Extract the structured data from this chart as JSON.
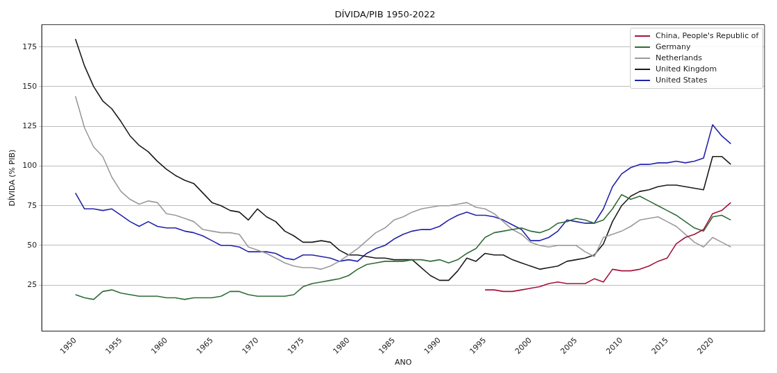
{
  "chart_data": {
    "type": "line",
    "title": "DÍVIDA/PIB 1950-2022",
    "xlabel": "ANO",
    "ylabel": "DÍVIDA (% PIB)",
    "x": [
      1950,
      1951,
      1952,
      1953,
      1954,
      1955,
      1956,
      1957,
      1958,
      1959,
      1960,
      1961,
      1962,
      1963,
      1964,
      1965,
      1966,
      1967,
      1968,
      1969,
      1970,
      1971,
      1972,
      1973,
      1974,
      1975,
      1976,
      1977,
      1978,
      1979,
      1980,
      1981,
      1982,
      1983,
      1984,
      1985,
      1986,
      1987,
      1988,
      1989,
      1990,
      1991,
      1992,
      1993,
      1994,
      1995,
      1996,
      1997,
      1998,
      1999,
      2000,
      2001,
      2002,
      2003,
      2004,
      2005,
      2006,
      2007,
      2008,
      2009,
      2010,
      2011,
      2012,
      2013,
      2014,
      2015,
      2016,
      2017,
      2018,
      2019,
      2020,
      2021,
      2022
    ],
    "series": [
      {
        "name": "China, People's Republic of",
        "color": "#a3123a",
        "x": [
          1995,
          1996,
          1997,
          1998,
          1999,
          2000,
          2001,
          2002,
          2003,
          2004,
          2005,
          2006,
          2007,
          2008,
          2009,
          2010,
          2011,
          2012,
          2013,
          2014,
          2015,
          2016,
          2017,
          2018,
          2019,
          2020,
          2021,
          2022
        ],
        "values": [
          22,
          22,
          21,
          21,
          22,
          23,
          24,
          26,
          27,
          26,
          26,
          26,
          29,
          27,
          35,
          34,
          34,
          35,
          37,
          40,
          42,
          51,
          55,
          57,
          60,
          70,
          72,
          77
        ]
      },
      {
        "name": "Germany",
        "color": "#2f6b35",
        "values": [
          19,
          17,
          16,
          21,
          22,
          20,
          19,
          18,
          18,
          18,
          17,
          17,
          16,
          17,
          17,
          17,
          18,
          21,
          21,
          19,
          18,
          18,
          18,
          18,
          19,
          24,
          26,
          27,
          28,
          29,
          31,
          35,
          38,
          39,
          40,
          40,
          40,
          41,
          41,
          40,
          41,
          39,
          41,
          45,
          48,
          55,
          58,
          59,
          60,
          61,
          59,
          58,
          60,
          64,
          65,
          67,
          66,
          64,
          66,
          73,
          82,
          79,
          81,
          78,
          75,
          72,
          69,
          65,
          61,
          59,
          68,
          69,
          66
        ]
      },
      {
        "name": "Netherlands",
        "color": "#9a9a9a",
        "values": [
          144,
          124,
          112,
          106,
          93,
          84,
          79,
          76,
          78,
          77,
          70,
          69,
          67,
          65,
          60,
          59,
          58,
          58,
          57,
          49,
          47,
          45,
          42,
          39,
          37,
          36,
          36,
          35,
          37,
          40,
          44,
          48,
          53,
          58,
          61,
          66,
          68,
          71,
          73,
          74,
          75,
          75,
          76,
          77,
          74,
          73,
          70,
          65,
          60,
          57,
          52,
          50,
          49,
          50,
          50,
          50,
          46,
          43,
          55,
          57,
          59,
          62,
          66,
          67,
          68,
          65,
          62,
          57,
          52,
          49,
          55,
          52,
          49
        ]
      },
      {
        "name": "United Kingdom",
        "color": "#1a1a1a",
        "values": [
          180,
          163,
          150,
          141,
          136,
          128,
          119,
          113,
          109,
          103,
          98,
          94,
          91,
          89,
          83,
          77,
          75,
          72,
          71,
          66,
          73,
          68,
          65,
          59,
          56,
          52,
          52,
          53,
          52,
          47,
          44,
          44,
          43,
          42,
          42,
          41,
          41,
          41,
          36,
          31,
          28,
          28,
          34,
          42,
          40,
          45,
          44,
          44,
          41,
          39,
          37,
          35,
          36,
          37,
          40,
          41,
          42,
          44,
          51,
          65,
          75,
          81,
          84,
          85,
          87,
          88,
          88,
          87,
          86,
          85,
          106,
          106,
          101
        ]
      },
      {
        "name": "United States",
        "color": "#2222aa",
        "values": [
          83,
          73,
          73,
          72,
          73,
          69,
          65,
          62,
          65,
          62,
          61,
          61,
          59,
          58,
          56,
          53,
          50,
          50,
          49,
          46,
          46,
          46,
          45,
          42,
          41,
          44,
          44,
          43,
          42,
          40,
          41,
          40,
          45,
          48,
          50,
          54,
          57,
          59,
          60,
          60,
          62,
          66,
          69,
          71,
          69,
          69,
          68,
          66,
          63,
          60,
          53,
          53,
          55,
          59,
          66,
          65,
          64,
          64,
          73,
          87,
          95,
          99,
          101,
          101,
          102,
          102,
          103,
          102,
          103,
          105,
          126,
          119,
          114
        ]
      }
    ],
    "xlim": [
      1946.3,
      2025.7
    ],
    "xticks": [
      1950,
      1955,
      1960,
      1965,
      1970,
      1975,
      1980,
      1985,
      1990,
      1995,
      2000,
      2005,
      2010,
      2015,
      2020
    ],
    "ylim": [
      -4,
      189
    ],
    "yticks": [
      25,
      50,
      75,
      100,
      125,
      150,
      175
    ],
    "grid": "y",
    "legend": "top right",
    "line_style": "solid",
    "marker": "none"
  }
}
